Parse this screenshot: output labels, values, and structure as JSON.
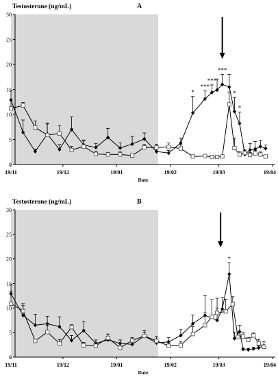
{
  "chart_data": [
    {
      "type": "line",
      "panel_label": "A",
      "ylabel": "Testosterone (ng/mL)",
      "xlabel": "Date",
      "ylim": [
        0,
        30
      ],
      "yticks": [
        0,
        5,
        10,
        15,
        20,
        25,
        30
      ],
      "xlim": [
        0,
        146
      ],
      "xticks": [
        {
          "x": 0,
          "label": "19/11"
        },
        {
          "x": 30,
          "label": "19/12"
        },
        {
          "x": 61,
          "label": "19/01"
        },
        {
          "x": 92,
          "label": "19/02"
        },
        {
          "x": 120,
          "label": "19/03"
        },
        {
          "x": 151,
          "label": "19/04"
        }
      ],
      "shaded_region": [
        0,
        85
      ],
      "arrow_x": 122,
      "grid": false,
      "series": [
        {
          "marker": "filled-diamond",
          "x": [
            0,
            7,
            14,
            21,
            28,
            35,
            42,
            49,
            56,
            63,
            70,
            77,
            84,
            91,
            98,
            105,
            112,
            116,
            119,
            122,
            126,
            129,
            132,
            135,
            138,
            141,
            144,
            147
          ],
          "y": [
            12.9,
            6.4,
            2.6,
            6.1,
            3.0,
            7.0,
            3.9,
            3.4,
            5.4,
            3.3,
            4.1,
            5.1,
            2.6,
            2.3,
            4.3,
            10.3,
            13.1,
            14.4,
            14.9,
            16.0,
            15.5,
            10.6,
            8.2,
            2.0,
            2.9,
            3.1,
            3.6,
            3.2
          ],
          "err": [
            1.8,
            2.5,
            0.5,
            2.0,
            1.0,
            2.5,
            1.0,
            0.8,
            1.8,
            1.0,
            1.5,
            1.2,
            0.6,
            0.5,
            1.0,
            3.3,
            1.6,
            1.5,
            2.2,
            2.0,
            2.5,
            2.8,
            2.3,
            0.8,
            1.3,
            1.5,
            1.2,
            0.7
          ]
        },
        {
          "marker": "open-square",
          "x": [
            0,
            7,
            14,
            21,
            28,
            35,
            42,
            49,
            56,
            63,
            70,
            77,
            84,
            91,
            98,
            105,
            112,
            116,
            119,
            122,
            126,
            129,
            132,
            135,
            138,
            141,
            144,
            147
          ],
          "y": [
            11.2,
            11.8,
            7.4,
            5.9,
            6.2,
            2.9,
            3.6,
            2.1,
            2.0,
            2.0,
            1.8,
            3.4,
            3.4,
            3.5,
            3.2,
            1.6,
            1.7,
            1.5,
            1.5,
            1.6,
            12.0,
            3.3,
            2.0,
            2.3,
            1.9,
            2.2,
            2.0,
            1.6
          ],
          "err": [
            1.7,
            0.6,
            1.3,
            2.4,
            1.6,
            0.7,
            1.1,
            0.5,
            0.4,
            0.5,
            0.3,
            0.6,
            0.6,
            0.8,
            0.7,
            0.3,
            0.3,
            0.3,
            0.3,
            0.3,
            2.5,
            2.0,
            0.6,
            0.8,
            0.5,
            0.6,
            0.5,
            0.3
          ]
        }
      ],
      "annotations": [
        {
          "x": 105,
          "text": "*"
        },
        {
          "x": 112,
          "text": "***"
        },
        {
          "x": 116,
          "text": "***"
        },
        {
          "x": 122,
          "text": "***"
        },
        {
          "x": 129,
          "text": "*"
        },
        {
          "x": 132,
          "text": "*"
        }
      ]
    },
    {
      "type": "line",
      "panel_label": "B",
      "ylabel": "Testosterone (ng/mL)",
      "xlabel": "Date",
      "ylim": [
        0,
        30
      ],
      "yticks": [
        0,
        5,
        10,
        15,
        20,
        25,
        30
      ],
      "xlim": [
        0,
        146
      ],
      "xticks": [
        {
          "x": 0,
          "label": "19/11"
        },
        {
          "x": 30,
          "label": "19/12"
        },
        {
          "x": 61,
          "label": "19/01"
        },
        {
          "x": 92,
          "label": "19/02"
        },
        {
          "x": 120,
          "label": "19/03"
        },
        {
          "x": 151,
          "label": "19/04"
        }
      ],
      "shaded_region": [
        0,
        85
      ],
      "arrow_x": 121,
      "grid": false,
      "series": [
        {
          "marker": "filled-diamond",
          "x": [
            0,
            7,
            14,
            21,
            28,
            35,
            42,
            49,
            56,
            63,
            70,
            77,
            84,
            91,
            98,
            105,
            112,
            119,
            122,
            126,
            129,
            132,
            134,
            137,
            140,
            143,
            146
          ],
          "y": [
            12.9,
            8.5,
            6.5,
            6.8,
            6.2,
            3.4,
            5.4,
            2.8,
            3.5,
            2.8,
            2.6,
            4.3,
            2.9,
            3.1,
            4.4,
            6.8,
            8.5,
            7.5,
            9.8,
            16.9,
            3.8,
            5.2,
            1.6,
            1.5,
            1.7,
            1.9,
            2.3
          ],
          "err": [
            1.8,
            2.0,
            2.2,
            1.5,
            2.0,
            1.0,
            1.8,
            0.7,
            1.2,
            0.7,
            1.2,
            1.1,
            0.8,
            0.9,
            1.2,
            1.8,
            4.0,
            2.5,
            2.3,
            2.3,
            1.3,
            1.3,
            0.2,
            0.3,
            0.3,
            0.4,
            0.8
          ]
        },
        {
          "marker": "open-square",
          "x": [
            0,
            7,
            14,
            21,
            28,
            35,
            42,
            49,
            56,
            63,
            70,
            77,
            84,
            91,
            98,
            105,
            112,
            116,
            119,
            124,
            128,
            131,
            134,
            137,
            140,
            143,
            146
          ],
          "y": [
            10.9,
            9.4,
            3.3,
            5.1,
            2.8,
            6.1,
            2.4,
            2.3,
            3.9,
            1.9,
            3.4,
            4.3,
            3.3,
            2.3,
            2.4,
            4.7,
            6.5,
            8.2,
            9.0,
            9.3,
            10.8,
            4.1,
            4.2,
            3.5,
            4.4,
            2.8,
            2.1
          ],
          "err": [
            2.5,
            1.5,
            0.3,
            1.3,
            0.8,
            0.5,
            0.6,
            0.5,
            0.8,
            0.4,
            0.6,
            0.8,
            0.9,
            0.4,
            0.7,
            1.5,
            2.5,
            3.5,
            3.0,
            2.5,
            1.5,
            0.8,
            0.8,
            0.5,
            0.5,
            0.8,
            0.4
          ]
        }
      ],
      "annotations": [
        {
          "x": 126,
          "text": "*"
        }
      ]
    }
  ]
}
